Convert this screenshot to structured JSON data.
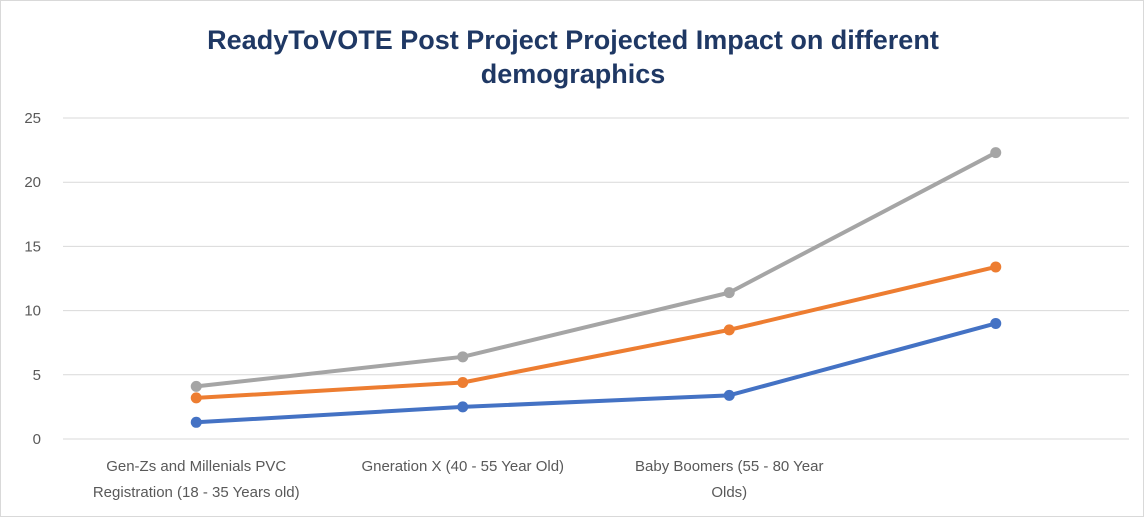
{
  "chart_data": {
    "type": "line",
    "title_lines": [
      "ReadyToVOTE Post Project Projected Impact  on different",
      "demographics"
    ],
    "categories": [
      [
        "Gen-Zs and Millenials PVC",
        "Registration (18 - 35 Years old)"
      ],
      [
        "Gneration X (40 - 55 Year Old)"
      ],
      [
        "Baby Boomers (55 - 80 Year",
        "Olds)"
      ],
      [
        ""
      ]
    ],
    "ylim": [
      0,
      25
    ],
    "yticks": [
      0,
      5,
      10,
      15,
      20,
      25
    ],
    "grid": true,
    "legend": "none",
    "series": [
      {
        "color": "#4472c4",
        "values": [
          1.3,
          2.5,
          3.4,
          9.0
        ]
      },
      {
        "color": "#ed7d31",
        "values": [
          3.2,
          4.4,
          8.5,
          13.4
        ]
      },
      {
        "color": "#a5a5a5",
        "values": [
          4.1,
          6.4,
          11.4,
          22.3
        ]
      }
    ]
  }
}
